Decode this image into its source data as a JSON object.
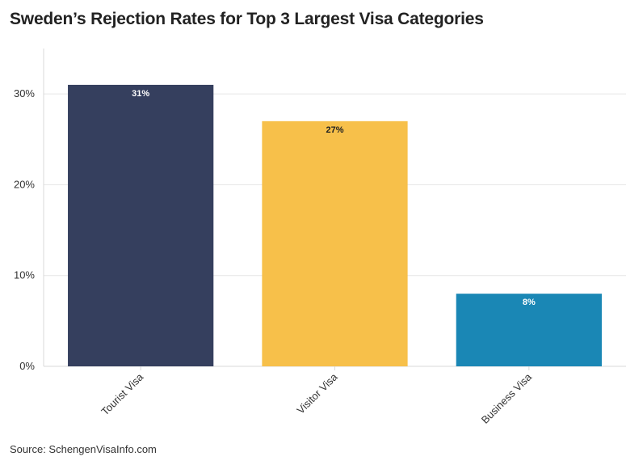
{
  "title": "Sweden’s Rejection Rates for Top 3 Largest Visa Categories",
  "source": "Source: SchengenVisaInfo.com",
  "chart_data": {
    "type": "bar",
    "title": "Sweden’s Rejection Rates for Top 3 Largest Visa Categories",
    "xlabel": "",
    "ylabel": "",
    "categories": [
      "Tourist Visa",
      "Visitor Visa",
      "Business Visa"
    ],
    "values": [
      31,
      27,
      8
    ],
    "data_labels": [
      "31%",
      "27%",
      "8%"
    ],
    "colors": [
      "#353f5e",
      "#f7c04a",
      "#1a87b5"
    ],
    "label_colors": [
      "#ffffff",
      "#222222",
      "#ffffff"
    ],
    "ylim": [
      0,
      35
    ],
    "yticks": [
      0,
      10,
      20,
      30
    ],
    "ytick_labels": [
      "0%",
      "10%",
      "20%",
      "30%"
    ],
    "grid": true,
    "legend": "none"
  }
}
